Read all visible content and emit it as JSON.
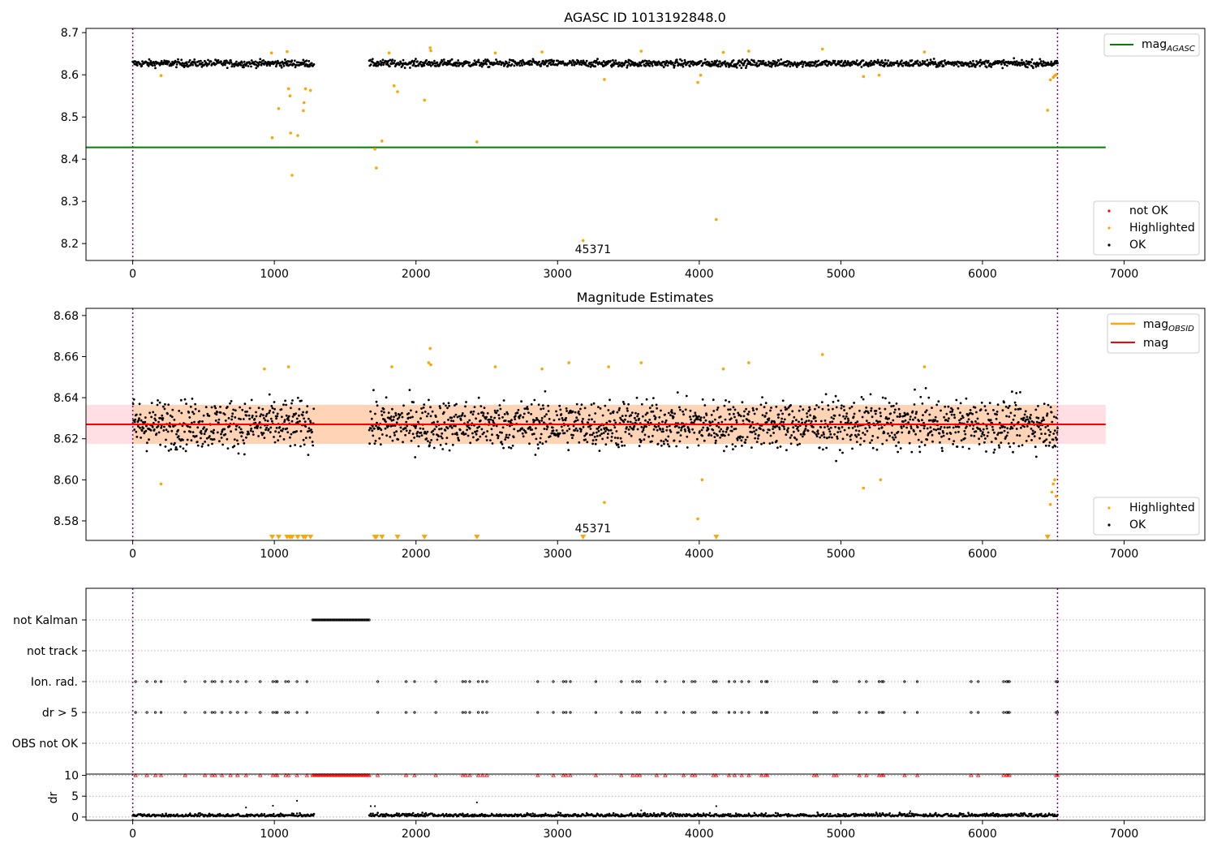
{
  "chart_data": [
    {
      "type": "scatter",
      "title": "AGASC ID 1013192848.0",
      "xlim": [
        -330,
        7570
      ],
      "ylim": [
        8.16,
        8.71
      ],
      "xticks": [
        0,
        1000,
        2000,
        3000,
        4000,
        5000,
        6000,
        7000
      ],
      "yticks": [
        8.2,
        8.3,
        8.4,
        8.5,
        8.6,
        8.7
      ],
      "ytick_decimals": 1,
      "obsid_annotation": {
        "text": "45371",
        "x": 3250,
        "y": 8.177
      },
      "vlines": [
        0,
        6530
      ],
      "mag_agasc": {
        "value": 8.428,
        "x_range": [
          -330,
          6870
        ]
      },
      "ok_band": {
        "y": 8.627,
        "spread": 0.006
      },
      "ok_segments": [
        [
          0,
          1280
        ],
        [
          1670,
          6530
        ]
      ],
      "highlighted": [
        {
          "x": 200,
          "y": 8.598
        },
        {
          "x": 980,
          "y": 8.652
        },
        {
          "x": 985,
          "y": 8.451
        },
        {
          "x": 1030,
          "y": 8.52
        },
        {
          "x": 1090,
          "y": 8.655
        },
        {
          "x": 1100,
          "y": 8.567
        },
        {
          "x": 1110,
          "y": 8.55
        },
        {
          "x": 1115,
          "y": 8.462
        },
        {
          "x": 1125,
          "y": 8.362
        },
        {
          "x": 1165,
          "y": 8.456
        },
        {
          "x": 1205,
          "y": 8.515
        },
        {
          "x": 1210,
          "y": 8.534
        },
        {
          "x": 1220,
          "y": 8.567
        },
        {
          "x": 1255,
          "y": 8.563
        },
        {
          "x": 1710,
          "y": 8.424
        },
        {
          "x": 1720,
          "y": 8.379
        },
        {
          "x": 1760,
          "y": 8.443
        },
        {
          "x": 1810,
          "y": 8.652
        },
        {
          "x": 1845,
          "y": 8.574
        },
        {
          "x": 1870,
          "y": 8.56
        },
        {
          "x": 2060,
          "y": 8.54
        },
        {
          "x": 2100,
          "y": 8.664
        },
        {
          "x": 2105,
          "y": 8.657
        },
        {
          "x": 2430,
          "y": 8.441
        },
        {
          "x": 2560,
          "y": 8.652
        },
        {
          "x": 2890,
          "y": 8.654
        },
        {
          "x": 3180,
          "y": 8.207
        },
        {
          "x": 3330,
          "y": 8.589
        },
        {
          "x": 3590,
          "y": 8.656
        },
        {
          "x": 3990,
          "y": 8.582
        },
        {
          "x": 4010,
          "y": 8.599
        },
        {
          "x": 4120,
          "y": 8.257
        },
        {
          "x": 4170,
          "y": 8.653
        },
        {
          "x": 4350,
          "y": 8.656
        },
        {
          "x": 4870,
          "y": 8.661
        },
        {
          "x": 5160,
          "y": 8.596
        },
        {
          "x": 5270,
          "y": 8.599
        },
        {
          "x": 5590,
          "y": 8.654
        },
        {
          "x": 6460,
          "y": 8.516
        },
        {
          "x": 6480,
          "y": 8.588
        },
        {
          "x": 6500,
          "y": 8.594
        },
        {
          "x": 6510,
          "y": 8.598
        },
        {
          "x": 6520,
          "y": 8.6
        }
      ],
      "legend_top": [
        {
          "label": "mag",
          "sub": "AGASC",
          "color": "#008000"
        }
      ],
      "legend_bottom": [
        {
          "label": "not OK",
          "color": "#ff0000"
        },
        {
          "label": "Highlighted",
          "color": "#ffa500"
        },
        {
          "label": "OK",
          "color": "#000000"
        }
      ]
    },
    {
      "type": "scatter",
      "title": "Magnitude Estimates",
      "xlim": [
        -330,
        7570
      ],
      "ylim": [
        8.5705,
        8.6835
      ],
      "xticks": [
        0,
        1000,
        2000,
        3000,
        4000,
        5000,
        6000,
        7000
      ],
      "yticks": [
        8.58,
        8.6,
        8.62,
        8.64,
        8.66,
        8.68
      ],
      "ytick_decimals": 2,
      "obsid_annotation": {
        "text": "45371",
        "x": 3250,
        "y": 8.5745
      },
      "vlines": [
        0,
        6530
      ],
      "mag": {
        "value": 8.627,
        "x_range": [
          -330,
          6870
        ],
        "color": "#ff0000"
      },
      "mag_band": {
        "low": 8.6175,
        "high": 8.6365
      },
      "ok_band": {
        "y": 8.627,
        "spread": 0.0085
      },
      "ok_segments": [
        [
          0,
          1280
        ],
        [
          1670,
          6530
        ]
      ],
      "highlighted": [
        {
          "x": 200,
          "y": 8.598
        },
        {
          "x": 930,
          "y": 8.654
        },
        {
          "x": 1100,
          "y": 8.655
        },
        {
          "x": 1830,
          "y": 8.655
        },
        {
          "x": 2090,
          "y": 8.657
        },
        {
          "x": 2100,
          "y": 8.664
        },
        {
          "x": 2105,
          "y": 8.656
        },
        {
          "x": 2560,
          "y": 8.655
        },
        {
          "x": 2890,
          "y": 8.654
        },
        {
          "x": 3080,
          "y": 8.657
        },
        {
          "x": 3330,
          "y": 8.589
        },
        {
          "x": 3360,
          "y": 8.655
        },
        {
          "x": 3590,
          "y": 8.657
        },
        {
          "x": 3990,
          "y": 8.581
        },
        {
          "x": 4020,
          "y": 8.6
        },
        {
          "x": 4170,
          "y": 8.654
        },
        {
          "x": 4350,
          "y": 8.657
        },
        {
          "x": 4870,
          "y": 8.661
        },
        {
          "x": 5160,
          "y": 8.596
        },
        {
          "x": 5280,
          "y": 8.6
        },
        {
          "x": 5590,
          "y": 8.655
        },
        {
          "x": 6480,
          "y": 8.588
        },
        {
          "x": 6490,
          "y": 8.594
        },
        {
          "x": 6500,
          "y": 8.598
        },
        {
          "x": 6510,
          "y": 8.6
        },
        {
          "x": 6520,
          "y": 8.592
        }
      ],
      "floor_markers": [
        985,
        1030,
        1090,
        1110,
        1125,
        1165,
        1205,
        1220,
        1255,
        1710,
        1720,
        1760,
        1870,
        2060,
        2430,
        3180,
        4120,
        6460
      ],
      "legend_top": [
        {
          "label": "mag",
          "sub": "OBSID",
          "color": "#ffa500"
        },
        {
          "label": "mag",
          "sub": "",
          "color": "#ff0000"
        }
      ],
      "legend_bottom": [
        {
          "label": "Highlighted",
          "color": "#ffa500"
        },
        {
          "label": "OK",
          "color": "#000000"
        }
      ]
    },
    {
      "type": "scatter",
      "xlim": [
        -330,
        7570
      ],
      "xticks": [
        0,
        1000,
        2000,
        3000,
        4000,
        5000,
        6000,
        7000
      ],
      "vlines": [
        0,
        6530
      ],
      "flag_rows": [
        "not Kalman",
        "not track",
        "Ion. rad.",
        "dr > 5",
        "OBS not OK"
      ],
      "not_kalman_range": [
        1270,
        1670
      ],
      "flag_events": [
        20,
        100,
        160,
        200,
        370,
        510,
        560,
        580,
        630,
        690,
        740,
        800,
        900,
        990,
        1010,
        1020,
        1080,
        1100,
        1160,
        1230,
        1730,
        1930,
        1990,
        2140,
        2330,
        2350,
        2380,
        2440,
        2470,
        2500,
        2860,
        2970,
        3040,
        3060,
        3090,
        3270,
        3450,
        3530,
        3560,
        3580,
        3700,
        3760,
        3890,
        3950,
        3970,
        4100,
        4120,
        4210,
        4250,
        4300,
        4350,
        4440,
        4470,
        4480,
        4810,
        4830,
        4950,
        4970,
        5130,
        5180,
        5270,
        5290,
        5300,
        5450,
        5540,
        5920,
        5970,
        6150,
        6170,
        6180,
        6190,
        6520,
        6530
      ],
      "dr_ylabel": "dr",
      "dr_yticks": [
        0,
        5,
        10
      ],
      "dr_ylim": [
        -0.8,
        10.3
      ],
      "dr_cap": 10,
      "dr_typical_max": 1.2,
      "dr_outliers": [
        {
          "x": 800,
          "y": 2.3
        },
        {
          "x": 990,
          "y": 2.7
        },
        {
          "x": 1160,
          "y": 3.9
        },
        {
          "x": 1680,
          "y": 2.6
        },
        {
          "x": 1710,
          "y": 2.6
        },
        {
          "x": 2430,
          "y": 3.5
        },
        {
          "x": 3590,
          "y": 1.6
        },
        {
          "x": 4120,
          "y": 2.6
        },
        {
          "x": 5490,
          "y": 1.4
        }
      ]
    }
  ]
}
